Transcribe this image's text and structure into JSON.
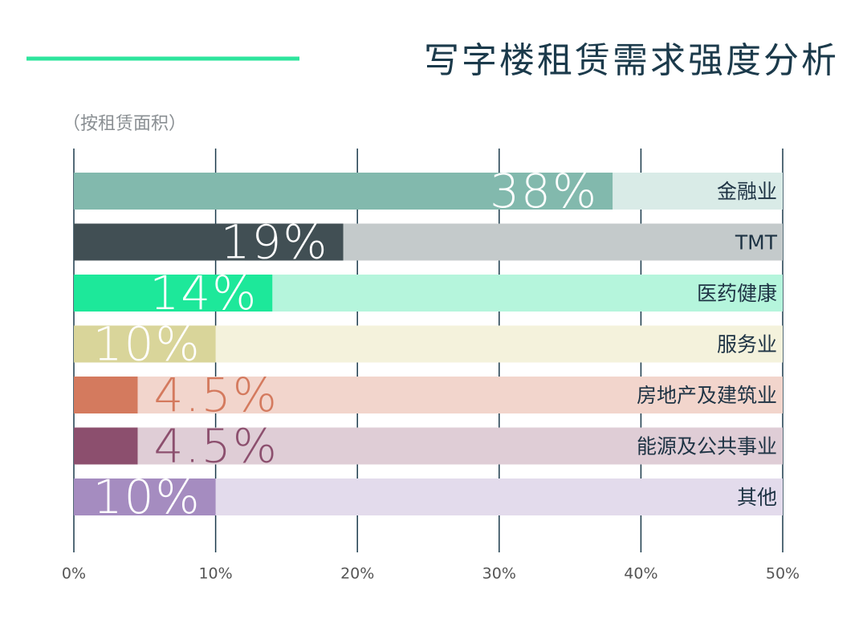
{
  "chart_data": {
    "type": "barh",
    "title": "写字楼租赁需求强度分析",
    "subtitle": "（按租赁面积）",
    "categories": [
      "金融业",
      "TMT",
      "医药健康",
      "服务业",
      "房地产及建筑业",
      "能源及公共事业",
      "其他"
    ],
    "values": [
      38,
      19,
      14,
      10,
      4.5,
      4.5,
      10
    ],
    "value_labels": [
      "38%",
      "19%",
      "14%",
      "10%",
      "4.5%",
      "4.5%",
      "10%"
    ],
    "colors": [
      "#82b9ad",
      "#414f54",
      "#1de89a",
      "#d9d59a",
      "#d47a5e",
      "#8c4f6e",
      "#a58cc0"
    ],
    "track_colors": [
      "#d9ebe7",
      "#c4cacb",
      "#b5f5dc",
      "#f4f2dc",
      "#f2d5cc",
      "#dfcdd6",
      "#e3dbec"
    ],
    "xlim": [
      0,
      50
    ],
    "xticks": [
      {
        "value": 0,
        "label": "0%"
      },
      {
        "value": 10,
        "label": "10%"
      },
      {
        "value": 20,
        "label": "20%"
      },
      {
        "value": 30,
        "label": "30%"
      },
      {
        "value": 40,
        "label": "40%"
      },
      {
        "value": 50,
        "label": "50%"
      }
    ],
    "grid": true
  }
}
